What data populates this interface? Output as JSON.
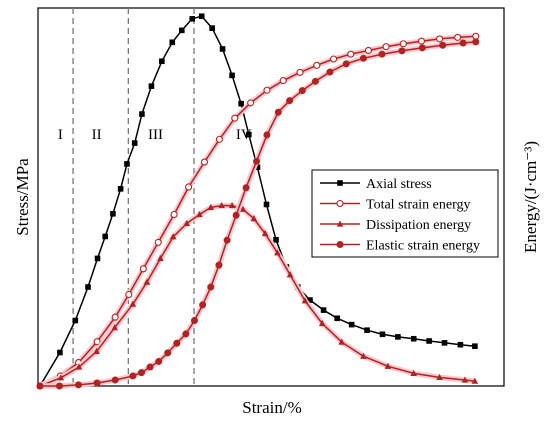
{
  "chart_data": {
    "type": "line",
    "xlabel": "Strain/%",
    "ylabel_left": "Stress/MPa",
    "ylabel_right": "Energy/(J·cm⁻³)",
    "xlim": [
      0,
      100
    ],
    "ylim": [
      0,
      100
    ],
    "stages": [
      {
        "label": "I",
        "x": 4.5
      },
      {
        "label": "II",
        "x": 12.5
      },
      {
        "label": "III",
        "x": 25.5
      },
      {
        "label": "IV",
        "x": 45
      }
    ],
    "stage_boundaries": [
      7.3,
      19.5,
      34
    ],
    "legend_position": "center-right",
    "series": [
      {
        "name": "Axial stress",
        "color": "#000000",
        "marker": "square",
        "axis": "left",
        "x": [
          0,
          4.4,
          7.8,
          10.6,
          12.7,
          14.4,
          16.1,
          17.8,
          19.2,
          20.9,
          22.5,
          24.6,
          26.9,
          29.2,
          31.3,
          33.6,
          35.7,
          38,
          40.3,
          42.4,
          44.4,
          46.1,
          48,
          50,
          52.1,
          54.4,
          56.9,
          59.6,
          62.6,
          65.6,
          68.8,
          72.2,
          75.6,
          79,
          82.5,
          85.9,
          89.3,
          92.8,
          96
        ],
        "y": [
          0,
          9,
          17.6,
          26.6,
          34.3,
          40.2,
          46.3,
          53,
          59.7,
          65.3,
          73.1,
          80.6,
          87.3,
          92.4,
          95.6,
          98.7,
          99.4,
          96.2,
          90.6,
          83.5,
          75.9,
          67.6,
          58.8,
          48.8,
          39.3,
          32,
          26.6,
          23.1,
          20.4,
          18.2,
          16.5,
          15,
          13.9,
          13.2,
          12.7,
          12.1,
          11.6,
          11.1,
          10.7
        ]
      },
      {
        "name": "Total strain energy",
        "color": "#b22222",
        "marker": "circle-open",
        "axis": "right",
        "x": [
          0,
          4.5,
          8.5,
          12.6,
          16.6,
          19.6,
          22.8,
          26.1,
          29.6,
          32.8,
          36.3,
          39.6,
          43,
          46.5,
          50.1,
          53.7,
          57.4,
          61.1,
          64.8,
          68.6,
          72.5,
          76.4,
          80.2,
          84.2,
          88.2,
          92.2,
          96.2
        ],
        "y": [
          0,
          2.7,
          6.3,
          11.9,
          18.5,
          24.6,
          31.5,
          38.6,
          46.1,
          53.5,
          60.2,
          66.3,
          72,
          76.1,
          79.5,
          82.1,
          84.3,
          86.2,
          87.9,
          89.2,
          90.2,
          91.2,
          92,
          92.7,
          93.3,
          93.7,
          94
        ]
      },
      {
        "name": "Dissipation energy",
        "color": "#b22222",
        "marker": "triangle",
        "axis": "right",
        "x": [
          0,
          4.6,
          8.6,
          12.5,
          16.5,
          20.5,
          23.6,
          26.6,
          29.4,
          32.4,
          35.2,
          37.7,
          40.1,
          42.4,
          44.8,
          47.2,
          49.7,
          52.4,
          55.2,
          58.5,
          62.3,
          66.6,
          71.4,
          76.8,
          82.5,
          88.2,
          93.8,
          96
        ],
        "y": [
          0,
          2.2,
          5.1,
          9.3,
          15.7,
          22,
          27.9,
          34.3,
          40.1,
          43.7,
          46.1,
          48,
          48.5,
          48.5,
          47.5,
          45,
          41,
          35.8,
          29.9,
          22.9,
          16.8,
          11.8,
          8,
          5.3,
          3.4,
          2.3,
          1.6,
          1.3
        ]
      },
      {
        "name": "Elastic strain energy",
        "color": "#b22222",
        "marker": "circle-filled",
        "axis": "right",
        "x": [
          0,
          4.3,
          8.5,
          12.6,
          16.6,
          20.5,
          22.4,
          24.3,
          26.2,
          28.2,
          30.2,
          32.2,
          34.1,
          35.9,
          37.7,
          39.5,
          41.3,
          43.3,
          45.5,
          47.8,
          50.1,
          52.6,
          55.1,
          57.9,
          60.8,
          64,
          67.6,
          71.4,
          75.5,
          79.9,
          84.4,
          88.9,
          93.4,
          96.2
        ],
        "y": [
          0,
          0,
          0.3,
          0.8,
          1.6,
          2.7,
          3.6,
          5.1,
          6.6,
          8.9,
          11.5,
          14,
          17.6,
          21.8,
          26.6,
          32.5,
          39.2,
          45.9,
          53.3,
          60.4,
          67.5,
          73.6,
          76.7,
          79.4,
          81.9,
          84.4,
          86.6,
          88.1,
          89.2,
          90.1,
          90.9,
          91.6,
          92.2,
          92.5
        ]
      }
    ]
  }
}
